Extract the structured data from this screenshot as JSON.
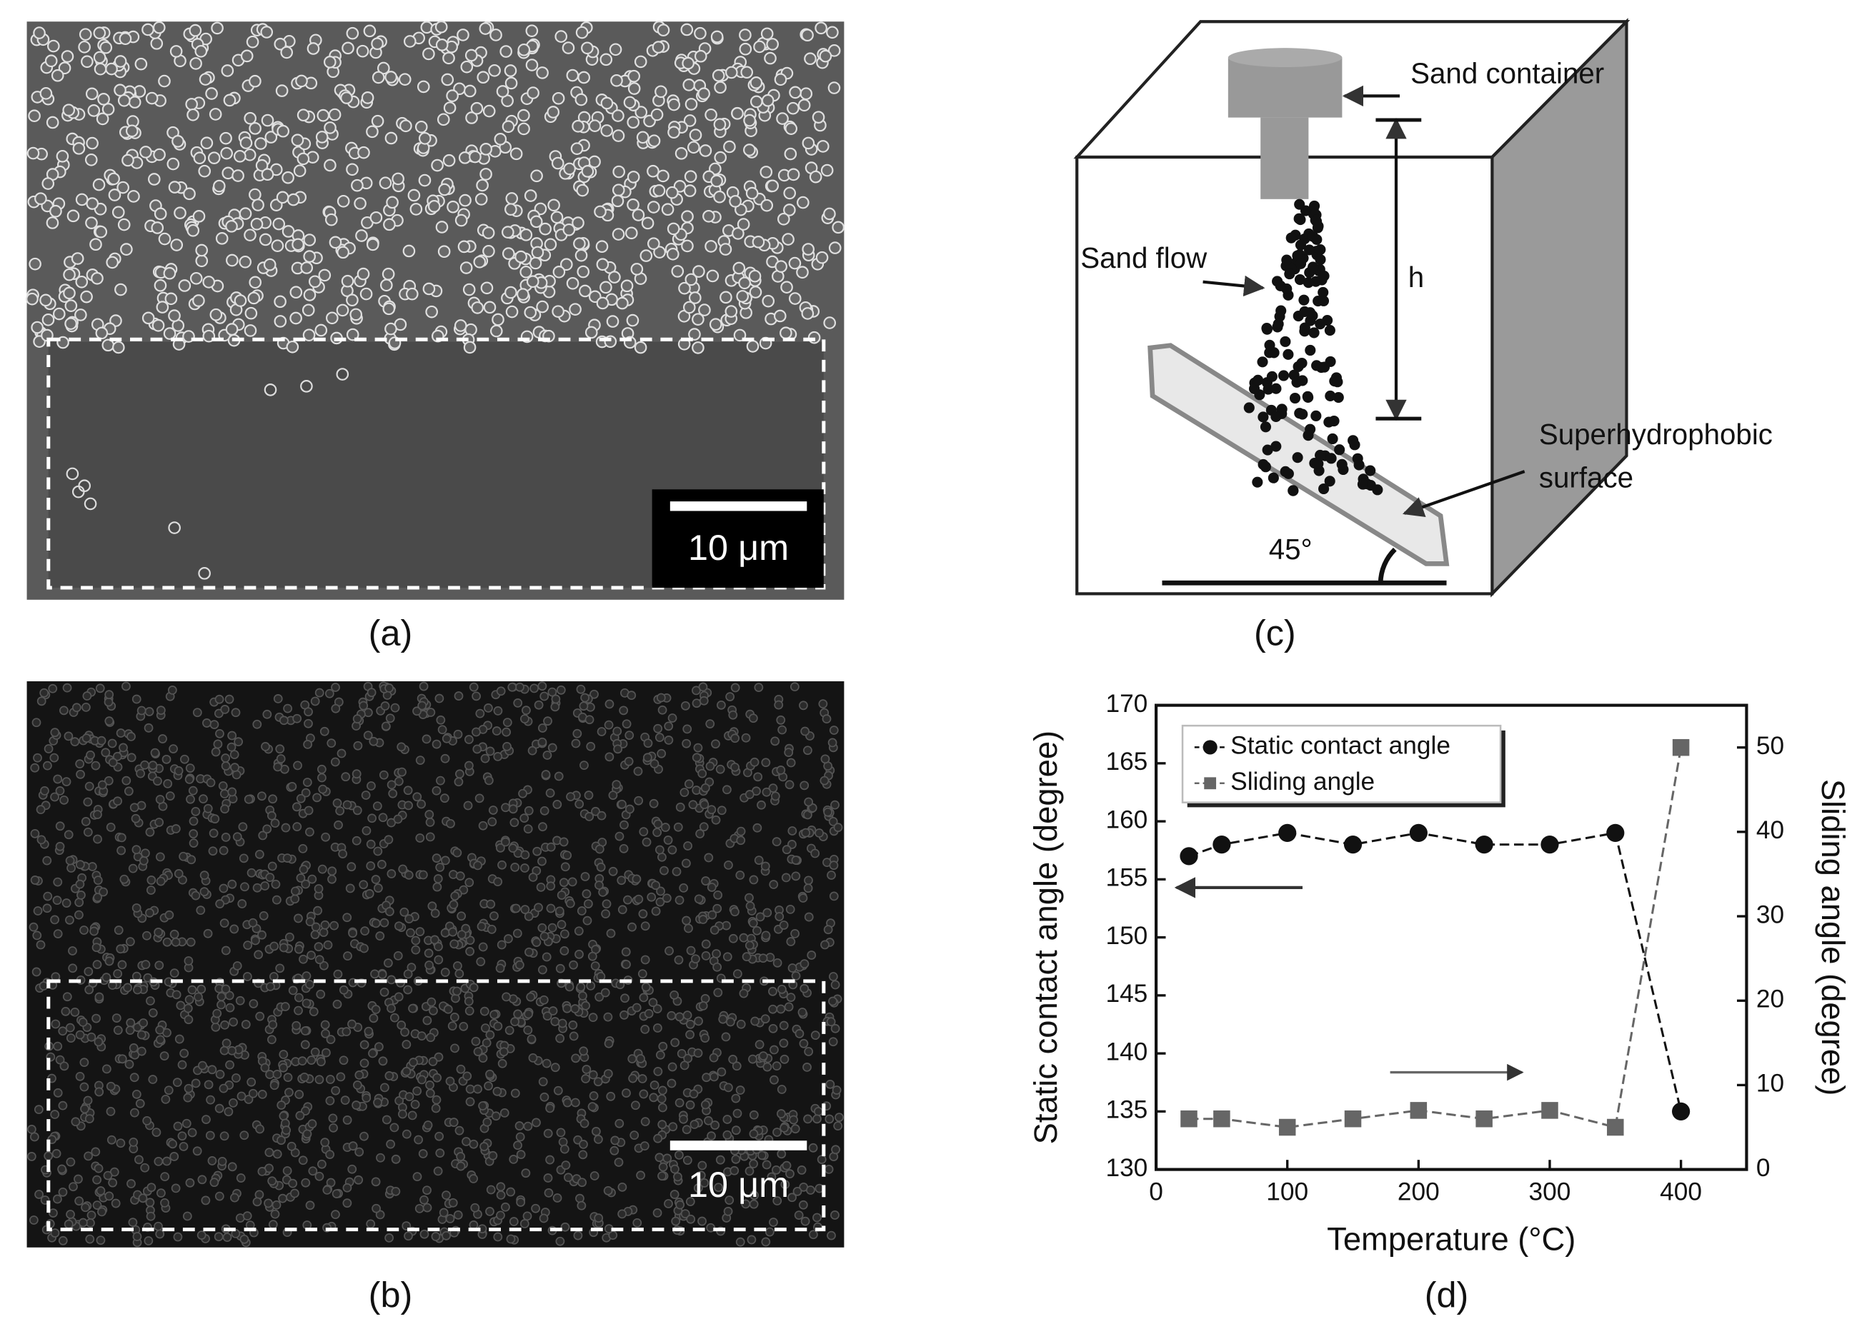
{
  "panels": {
    "a": {
      "label": "(a)",
      "scale_bar": "10 μm"
    },
    "b": {
      "label": "(b)",
      "scale_bar": "10 μm"
    },
    "c": {
      "label": "(c)",
      "sand_container": "Sand container",
      "sand_flow": "Sand flow",
      "height": "h",
      "surface": [
        "Superhydrophobic",
        "surface"
      ],
      "angle": "45°"
    },
    "d": {
      "label": "(d)"
    }
  },
  "chart_data": {
    "type": "line",
    "x_label": "Temperature (°C)",
    "y_label": "Static contact angle (degree)",
    "y2_label": "Sliding angle (degree)",
    "x": [
      25,
      50,
      100,
      150,
      200,
      250,
      300,
      350,
      400
    ],
    "series": [
      {
        "name": "Static contact angle",
        "color": "#111111",
        "marker": "circle",
        "values": [
          157,
          158,
          159,
          158,
          159,
          158,
          158,
          159,
          135
        ]
      },
      {
        "name": "Sliding angle",
        "color": "#666666",
        "marker": "square",
        "axis": "y2",
        "values": [
          6,
          6,
          5,
          6,
          7,
          6,
          7,
          5,
          50
        ]
      }
    ],
    "xlim": [
      0,
      450
    ],
    "xticks": [
      0,
      100,
      200,
      300,
      400
    ],
    "ylim": [
      130,
      170
    ],
    "yticks": [
      130,
      135,
      140,
      145,
      150,
      155,
      160,
      165,
      170
    ],
    "y2lim": [
      0,
      55
    ],
    "y2ticks": [
      0,
      10,
      20,
      30,
      40,
      50
    ],
    "legend": "upper left"
  }
}
